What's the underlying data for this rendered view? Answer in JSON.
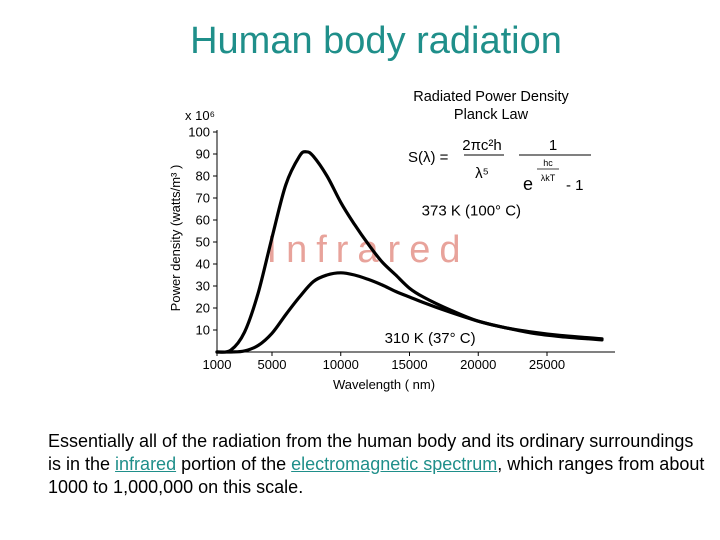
{
  "slide": {
    "title": "Human body radiation",
    "caption": {
      "part1": "Essentially all of the radiation from the human body and its ordinary surroundings is in the ",
      "link1": "infrared",
      "part2": " portion of the ",
      "link2": "electromagnetic spectrum",
      "part3": ", which ranges from about 1000 to 1,000,000 on this scale."
    },
    "colors": {
      "title": "#1f8f8a",
      "watermark": "#e8a39b"
    }
  },
  "chart_data": {
    "type": "line",
    "title": "Radiated Power Density",
    "subtitle": "Planck Law",
    "formula": {
      "lhs": "S(λ) =",
      "num1": "2πc²h",
      "den1": "λ⁵",
      "num2": "1",
      "exp_base": "e",
      "exp_num": "hc",
      "exp_den": "λkT",
      "minus_one": "- 1"
    },
    "xlabel": "Wavelength ( nm)",
    "ylabel": "Power density (watts/m³ )",
    "y_multiplier": "x 10⁶",
    "xlim": [
      1000,
      29500
    ],
    "ylim": [
      0,
      100
    ],
    "x_ticks": [
      {
        "value": 1000,
        "label": "1000"
      },
      {
        "value": 5000,
        "label": "5000"
      },
      {
        "value": 10000,
        "label": "10000"
      },
      {
        "value": 15000,
        "label": "15000"
      },
      {
        "value": 20000,
        "label": "20000"
      },
      {
        "value": 25000,
        "label": "25000"
      }
    ],
    "y_ticks": [
      {
        "value": 10,
        "label": "10"
      },
      {
        "value": 20,
        "label": "20"
      },
      {
        "value": 30,
        "label": "30"
      },
      {
        "value": 40,
        "label": "40"
      },
      {
        "value": 50,
        "label": "50"
      },
      {
        "value": 60,
        "label": "60"
      },
      {
        "value": 70,
        "label": "70"
      },
      {
        "value": 80,
        "label": "80"
      },
      {
        "value": 90,
        "label": "90"
      },
      {
        "value": 100,
        "label": "100"
      }
    ],
    "watermark": "Infrared",
    "series": [
      {
        "name": "373 K (100° C)",
        "x": [
          1000,
          2000,
          3000,
          4000,
          5000,
          6000,
          7000,
          7500,
          8000,
          9000,
          10000,
          11000,
          12000,
          13000,
          14000,
          15000,
          16000,
          18000,
          20000,
          22000,
          24000,
          26000,
          28000,
          29000
        ],
        "values": [
          0,
          0.8,
          9,
          27,
          52,
          76,
          89,
          91,
          89,
          80,
          68,
          58,
          49,
          41,
          35,
          29,
          25,
          19,
          14,
          11,
          8.5,
          7,
          6,
          5.5
        ]
      },
      {
        "name": "310 K (37° C)",
        "x": [
          1000,
          2000,
          3000,
          4000,
          5000,
          6000,
          7000,
          8000,
          9000,
          10000,
          11000,
          12000,
          13000,
          14000,
          15000,
          16000,
          18000,
          20000,
          22000,
          24000,
          26000,
          28000,
          29000
        ],
        "values": [
          0,
          0,
          0.5,
          3,
          8.5,
          17,
          25,
          32,
          35,
          36,
          35,
          33,
          30.5,
          27.5,
          25,
          22.5,
          18,
          14,
          11,
          9,
          7.5,
          6.5,
          6
        ]
      }
    ],
    "series_labels": [
      {
        "text": "373 K (100° C)",
        "x": 19500,
        "y": 62
      },
      {
        "text": "310 K (37° C)",
        "x": 16500,
        "y": 4
      }
    ],
    "grid": false,
    "legend": "none"
  }
}
